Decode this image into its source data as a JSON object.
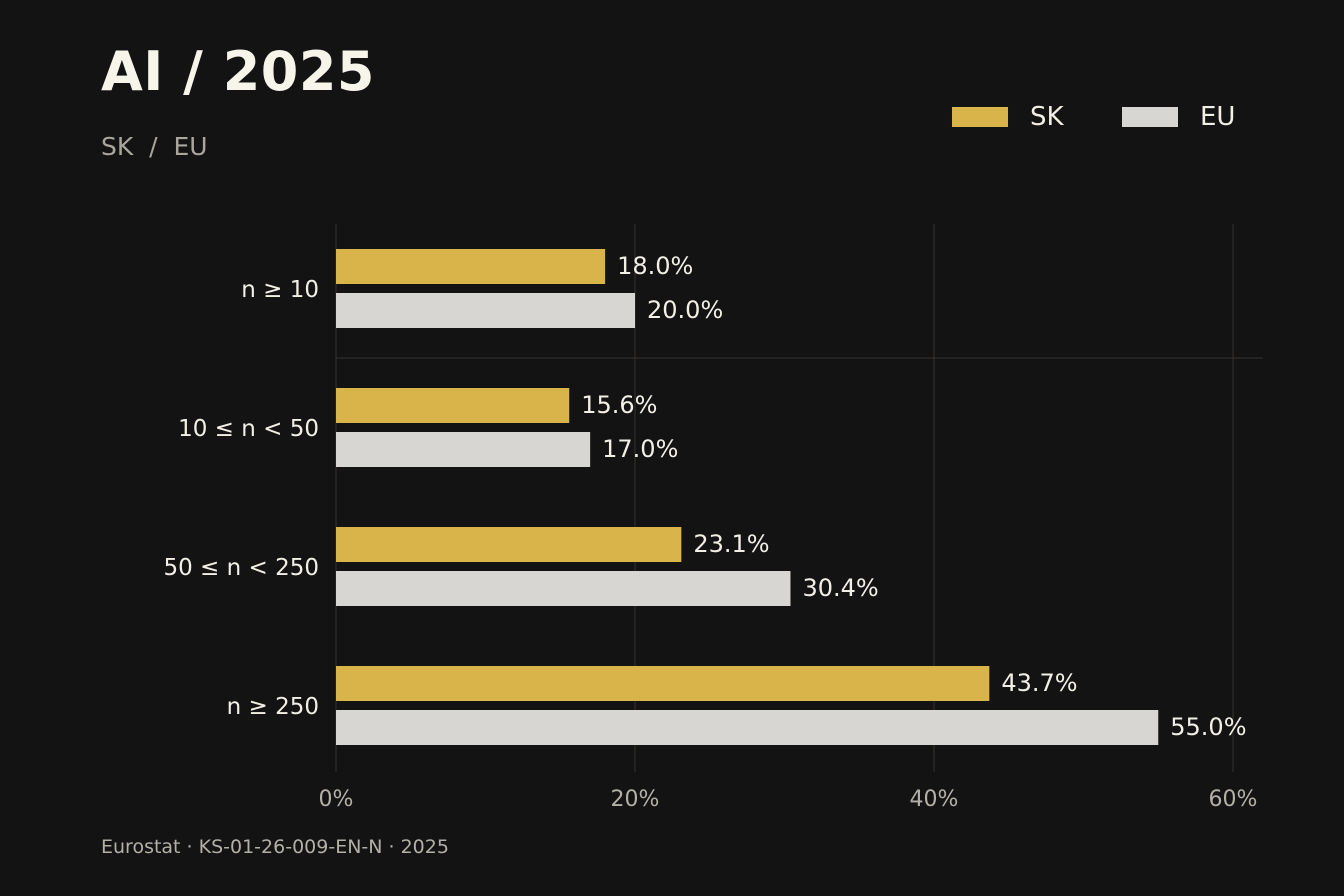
{
  "header": {
    "title": "AI / 2025",
    "subtitle": "SK  /  EU"
  },
  "footer": {
    "source": "Eurostat · KS-01-26-009-EN-N · 2025"
  },
  "chart_data": {
    "type": "bar",
    "orientation": "horizontal",
    "title": "AI / 2025",
    "subtitle": "SK  /  EU",
    "categories": [
      "n ≥ 10",
      "10 ≤ n < 50",
      "50 ≤ n < 250",
      "n ≥ 250"
    ],
    "series": [
      {
        "name": "SK",
        "values": [
          18.0,
          15.6,
          23.1,
          43.7
        ],
        "labels": [
          "18.0%",
          "15.6%",
          "23.1%",
          "43.7%"
        ],
        "color": "#d9b44a"
      },
      {
        "name": "EU",
        "values": [
          20.0,
          17.0,
          30.4,
          55.0
        ],
        "labels": [
          "20.0%",
          "17.0%",
          "30.4%",
          "55.0%"
        ],
        "color": "#d8d6d2"
      }
    ],
    "xlim": [
      0,
      62
    ],
    "xticks": [
      0,
      20,
      40,
      60
    ],
    "xtick_labels": [
      "0%",
      "20%",
      "40%",
      "60%"
    ],
    "xlabel": "",
    "ylabel": "",
    "grid": true,
    "legend_position": "top-right",
    "colors": {
      "background": "#131313",
      "grid": "#34332f",
      "tick_label": "#b3b0a7",
      "category_label": "#f2efe6",
      "value_label": "#f2efe6"
    }
  }
}
